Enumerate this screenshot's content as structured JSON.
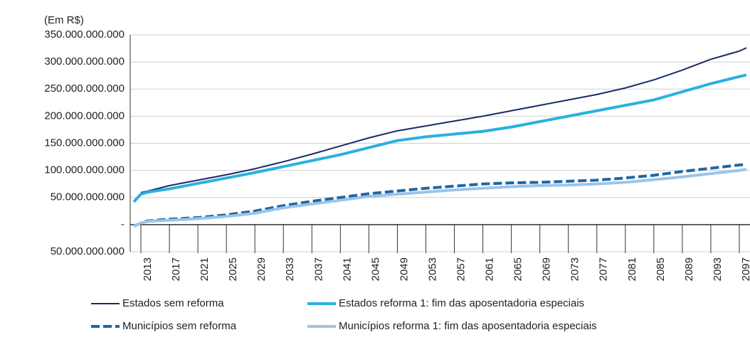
{
  "chart_data": {
    "type": "line",
    "subtitle": "(Em R$)",
    "x": [
      2012,
      2013,
      2014,
      2017,
      2021,
      2025,
      2029,
      2033,
      2037,
      2041,
      2045,
      2049,
      2053,
      2057,
      2061,
      2065,
      2069,
      2073,
      2077,
      2081,
      2085,
      2089,
      2093,
      2097,
      2098
    ],
    "xlim": [
      2011.5,
      2098.5
    ],
    "xticks": [
      2013,
      2017,
      2021,
      2025,
      2029,
      2033,
      2037,
      2041,
      2045,
      2049,
      2053,
      2057,
      2061,
      2065,
      2069,
      2073,
      2077,
      2081,
      2085,
      2089,
      2093,
      2097
    ],
    "ylim": [
      -50000000000,
      350000000000
    ],
    "yticks": [
      {
        "value": -50000000000,
        "label": "50.000.000.000"
      },
      {
        "value": 0,
        "label": "-"
      },
      {
        "value": 50000000000,
        "label": "50.000.000.000"
      },
      {
        "value": 100000000000,
        "label": "100.000.000.000"
      },
      {
        "value": 150000000000,
        "label": "150.000.000.000"
      },
      {
        "value": 200000000000,
        "label": "200.000.000.000"
      },
      {
        "value": 250000000000,
        "label": "250.000.000.000"
      },
      {
        "value": 300000000000,
        "label": "300.000.000.000"
      },
      {
        "value": 350000000000,
        "label": "350.000.000.000"
      }
    ],
    "grid": true,
    "legend": "bottom",
    "series": [
      {
        "name": "Estados sem reforma",
        "color": "#1b2a6b",
        "width": 2,
        "dashed": false,
        "values": [
          null,
          59000000000,
          62000000000,
          72000000000,
          82000000000,
          92000000000,
          103000000000,
          116000000000,
          130000000000,
          145000000000,
          160000000000,
          173000000000,
          182000000000,
          191000000000,
          200000000000,
          210000000000,
          220000000000,
          230000000000,
          240000000000,
          252000000000,
          267000000000,
          285000000000,
          305000000000,
          320000000000,
          326000000000
        ]
      },
      {
        "name": "Estados reforma 1: fim das aposentadoria especiais",
        "color": "#29b1e0",
        "width": 4,
        "dashed": false,
        "values": [
          42000000000,
          56000000000,
          60000000000,
          66000000000,
          76000000000,
          86000000000,
          96000000000,
          107000000000,
          118000000000,
          129000000000,
          142000000000,
          155000000000,
          162000000000,
          167000000000,
          172000000000,
          180000000000,
          190000000000,
          200000000000,
          210000000000,
          220000000000,
          230000000000,
          245000000000,
          260000000000,
          273000000000,
          276000000000
        ]
      },
      {
        "name": "Municípios sem reforma",
        "color": "#1d67a3",
        "width": 4,
        "dashed": true,
        "values": [
          -3000000000,
          3000000000,
          7000000000,
          10000000000,
          13000000000,
          18000000000,
          25000000000,
          35000000000,
          43000000000,
          50000000000,
          57000000000,
          62000000000,
          67000000000,
          71000000000,
          75000000000,
          77000000000,
          78000000000,
          80000000000,
          82000000000,
          86000000000,
          91000000000,
          98000000000,
          104000000000,
          110000000000,
          111000000000
        ]
      },
      {
        "name": "Municípios reforma 1: fim das aposentadoria especiais",
        "color": "#9cc4e8",
        "width": 4,
        "dashed": false,
        "values": [
          -3000000000,
          3000000000,
          6000000000,
          8000000000,
          11000000000,
          15000000000,
          21000000000,
          31000000000,
          38000000000,
          45000000000,
          52000000000,
          56000000000,
          60000000000,
          64000000000,
          67000000000,
          70000000000,
          72000000000,
          73000000000,
          75000000000,
          78000000000,
          83000000000,
          88000000000,
          94000000000,
          100000000000,
          102000000000
        ]
      }
    ]
  }
}
